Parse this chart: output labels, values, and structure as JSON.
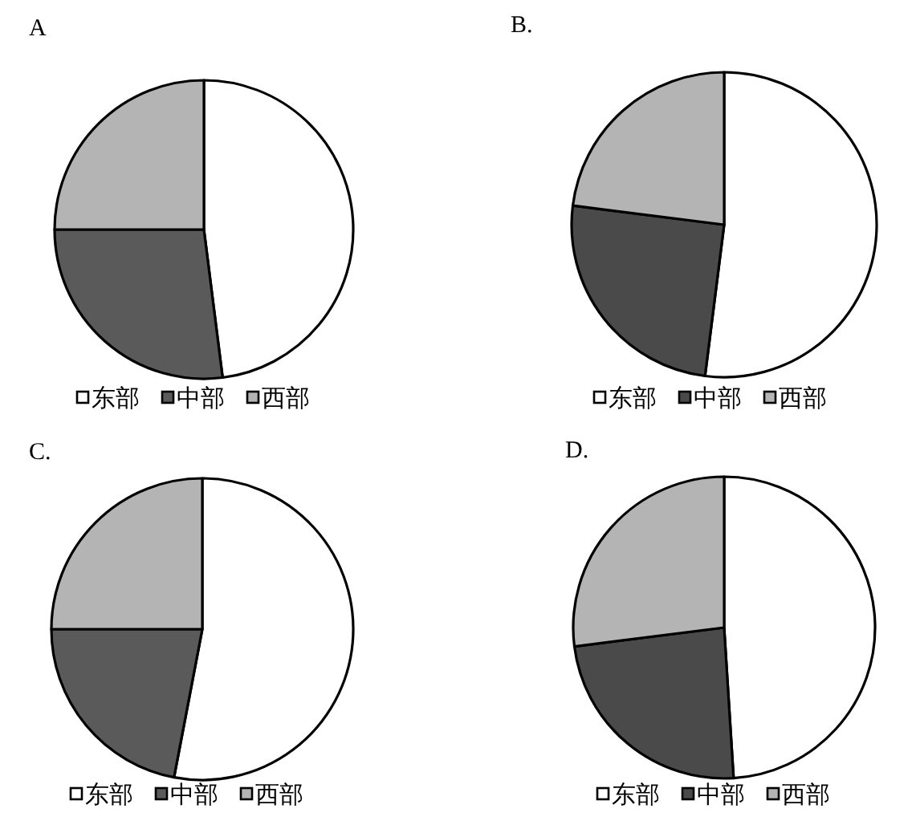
{
  "chart_data": [
    {
      "type": "pie",
      "title": "A",
      "categories": [
        "东部",
        "中部",
        "西部"
      ],
      "values": [
        48,
        27,
        25
      ],
      "colors": [
        "#ffffff",
        "#5a5a5a",
        "#b4b4b4"
      ],
      "legend": "bottom"
    },
    {
      "type": "pie",
      "title": "B.",
      "categories": [
        "东部",
        "中部",
        "西部"
      ],
      "values": [
        52,
        25,
        23
      ],
      "colors": [
        "#ffffff",
        "#4a4a4a",
        "#b4b4b4"
      ],
      "legend": "bottom"
    },
    {
      "type": "pie",
      "title": "C.",
      "categories": [
        "东部",
        "中部",
        "西部"
      ],
      "values": [
        53,
        22,
        25
      ],
      "colors": [
        "#ffffff",
        "#5a5a5a",
        "#b4b4b4"
      ],
      "legend": "bottom"
    },
    {
      "type": "pie",
      "title": "D.",
      "categories": [
        "东部",
        "中部",
        "西部"
      ],
      "values": [
        49,
        24,
        27
      ],
      "colors": [
        "#ffffff",
        "#4a4a4a",
        "#b4b4b4"
      ],
      "legend": "bottom"
    }
  ]
}
